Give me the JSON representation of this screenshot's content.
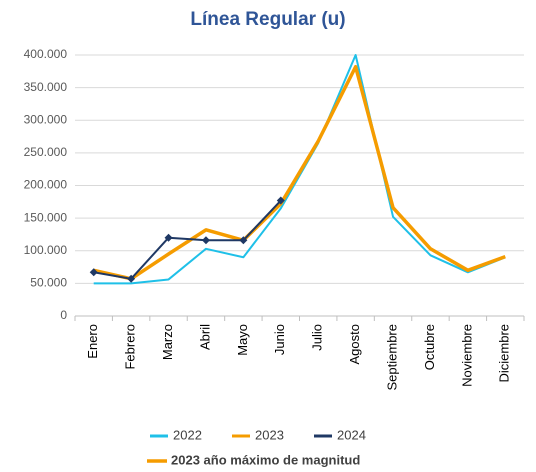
{
  "chart_data": {
    "type": "line",
    "title": "Línea Regular (u)",
    "categories": [
      "Enero",
      "Febrero",
      "Marzo",
      "Abril",
      "Mayo",
      "Junio",
      "Julio",
      "Agosto",
      "Septiembre",
      "Octubre",
      "Noviembre",
      "Diciembre"
    ],
    "series": [
      {
        "name": "2022",
        "color": "#1fc0e8",
        "values": [
          50000,
          50000,
          56000,
          103000,
          90000,
          165000,
          265000,
          400000,
          152000,
          93000,
          67000,
          90000
        ]
      },
      {
        "name": "2023",
        "color": "#f59c00",
        "values": [
          70000,
          57000,
          95000,
          132000,
          116000,
          172000,
          268000,
          382000,
          166000,
          103000,
          70000,
          91000
        ]
      },
      {
        "name": "2024",
        "color": "#1f3864",
        "values": [
          67000,
          57000,
          120000,
          116000,
          116000,
          177000,
          null,
          null,
          null,
          null,
          null,
          null
        ]
      }
    ],
    "ylim": [
      0,
      400000
    ],
    "yticks": [
      0,
      {
        "value": 50000,
        "label": "50.000"
      },
      {
        "value": 100000,
        "label": "100.000"
      },
      {
        "value": 150000,
        "label": "150.000"
      },
      {
        "value": 200000,
        "label": "200.000"
      },
      {
        "value": 250000,
        "label": "250.000"
      },
      {
        "value": 300000,
        "label": "300.000"
      },
      {
        "value": 350000,
        "label": "350.000"
      },
      {
        "value": 400000,
        "label": "400.000"
      }
    ],
    "grid": true,
    "annotation": "2023 año máximo de magnitud"
  }
}
